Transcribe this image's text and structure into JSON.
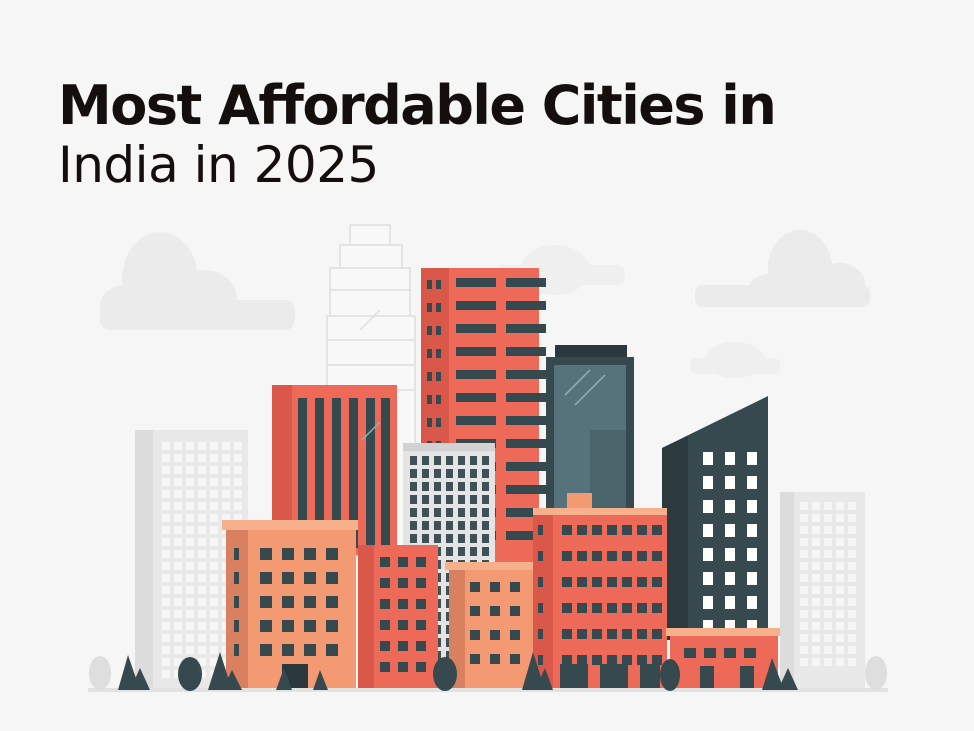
{
  "header": {
    "title_bold": "Most Affordable Cities in",
    "title_regular": "India in 2025"
  },
  "illustration": {
    "icon": "city-skyline-icon",
    "colors": {
      "background": "#f6f6f6",
      "coral": "#ee6a58",
      "peach": "#f39a73",
      "slate": "#36494f",
      "grey": "#e6e6e6"
    }
  }
}
